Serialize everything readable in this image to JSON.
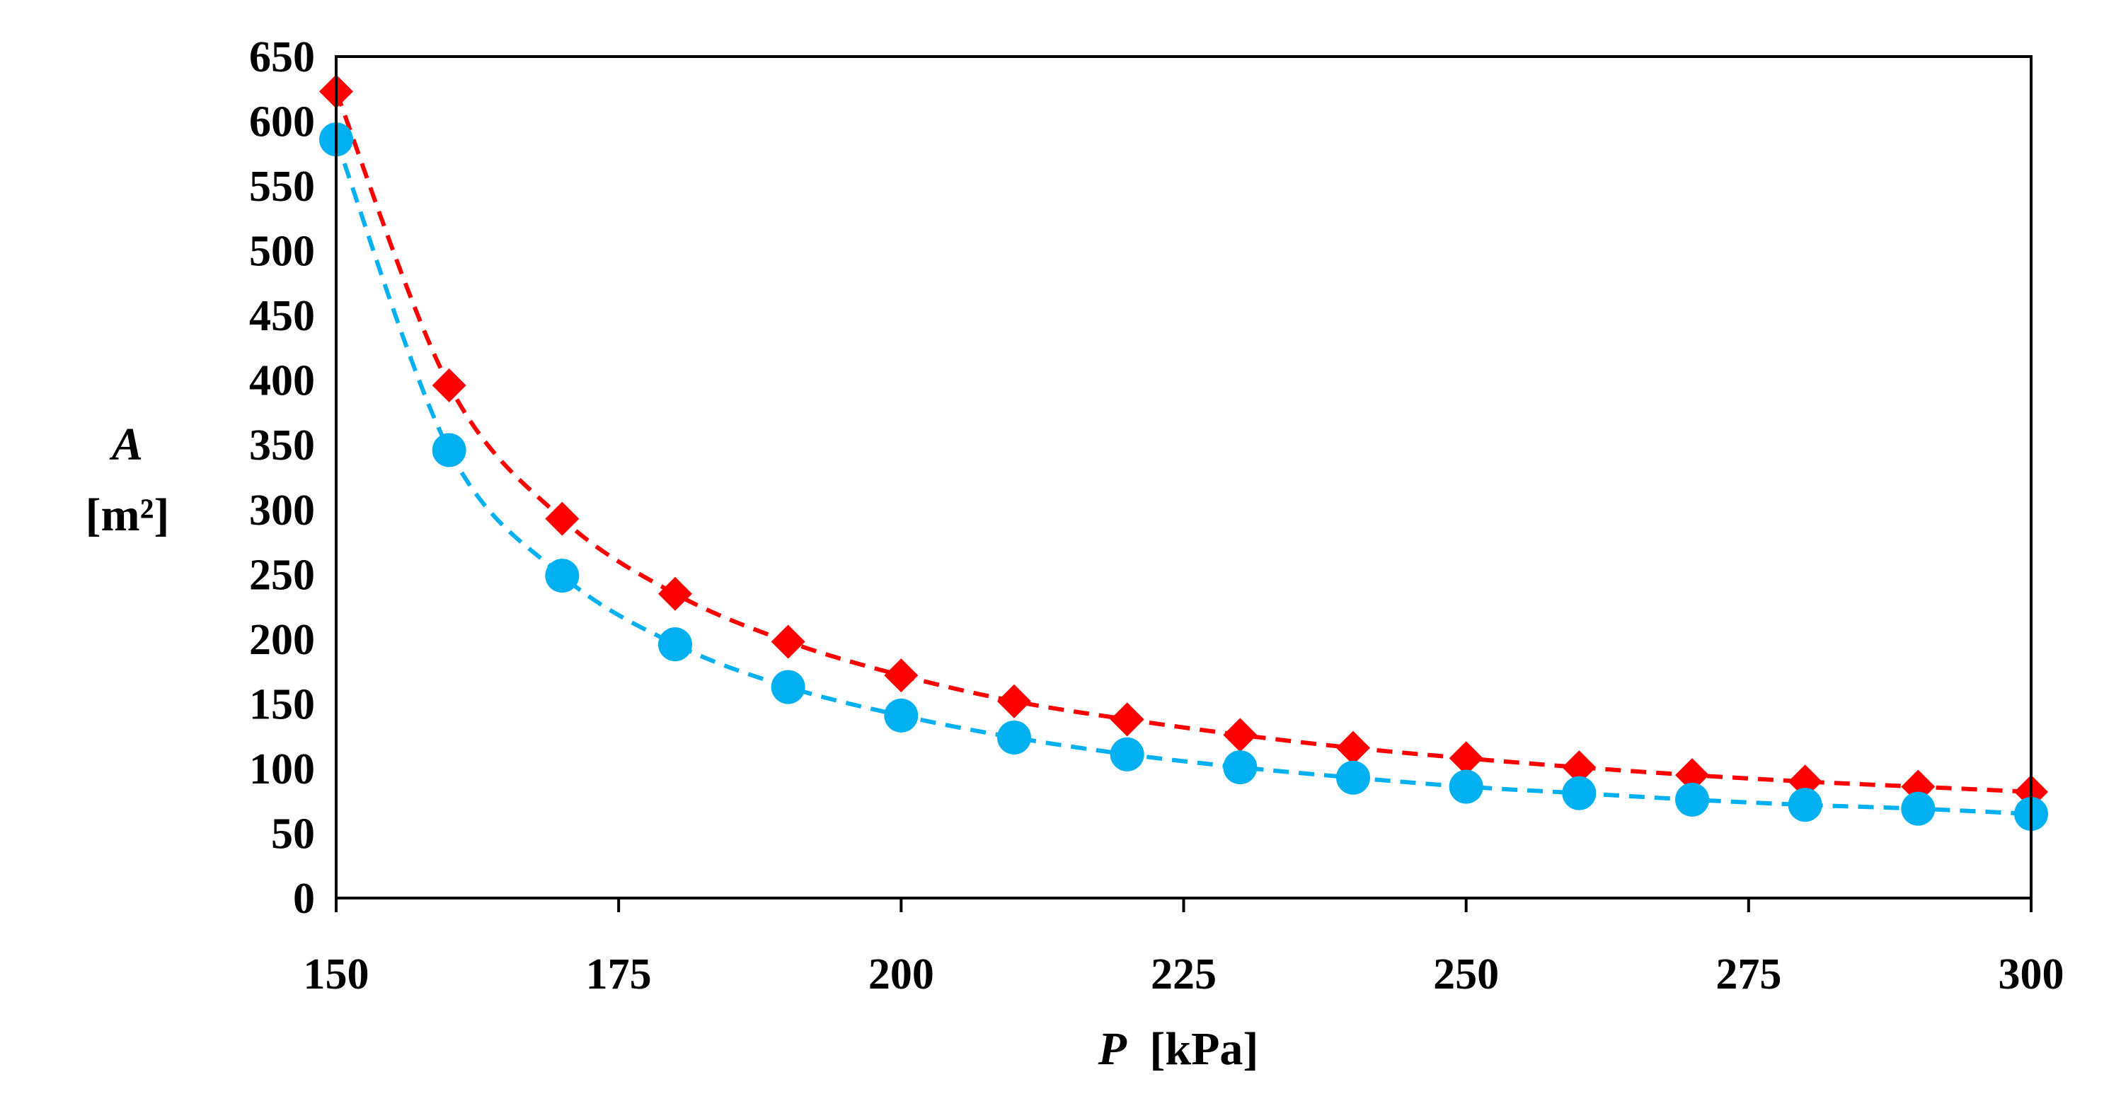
{
  "chart_data": {
    "type": "scatter",
    "title": "",
    "xlabel": {
      "var": "P",
      "unit": "[kPa]"
    },
    "ylabel": {
      "var": "A",
      "unit": "[m²]"
    },
    "xlim": [
      150,
      300
    ],
    "ylim": [
      0,
      650
    ],
    "x_ticks": [
      "150",
      "175",
      "200",
      "225",
      "250",
      "275",
      "300"
    ],
    "y_ticks": [
      "0",
      "50",
      "100",
      "150",
      "200",
      "250",
      "300",
      "350",
      "400",
      "450",
      "500",
      "550",
      "600",
      "650"
    ],
    "grid": false,
    "x": [
      150,
      160,
      170,
      180,
      190,
      200,
      210,
      220,
      230,
      240,
      250,
      260,
      270,
      280,
      290,
      300
    ],
    "series": [
      {
        "name": "diamond series",
        "marker": "diamond",
        "line": "dashed",
        "color": "#ff0000",
        "values": [
          623,
          396,
          293,
          235,
          198,
          172,
          152,
          138,
          126,
          116,
          108,
          101,
          95,
          90,
          86,
          82
        ]
      },
      {
        "name": "circle series",
        "marker": "circle",
        "line": "dashed",
        "color": "#00b0f0",
        "values": [
          586,
          346,
          249,
          196,
          163,
          141,
          124,
          111,
          101,
          93,
          86,
          81,
          76,
          72,
          69,
          65
        ]
      }
    ]
  }
}
